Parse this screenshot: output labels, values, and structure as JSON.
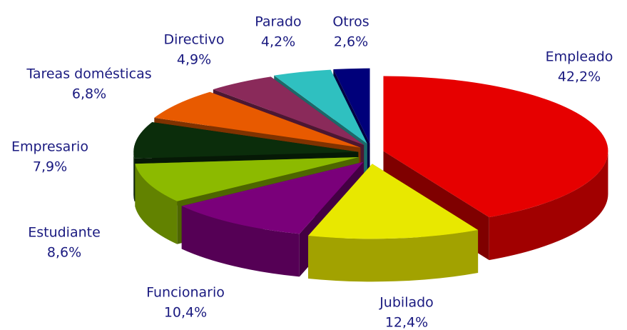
{
  "chart_data": {
    "type": "pie3d",
    "categories": [
      "Empleado",
      "Jubilado",
      "Funcionario",
      "Estudiante",
      "Empresario",
      "Tareas domésticas",
      "Directivo",
      "Parado",
      "Otros"
    ],
    "values": [
      42.2,
      12.4,
      10.4,
      8.6,
      7.9,
      6.8,
      4.9,
      4.2,
      2.6
    ],
    "value_labels": [
      "42,2%",
      "12,4%",
      "10,4%",
      "8,6%",
      "7,9%",
      "6,8%",
      "4,9%",
      "4,2%",
      "2,6%"
    ],
    "colors": [
      "#e60000",
      "#e8e800",
      "#7a007a",
      "#8cba00",
      "#0b2d0b",
      "#e85a00",
      "#8a2a5a",
      "#2fc0c0",
      "#00007a"
    ]
  }
}
